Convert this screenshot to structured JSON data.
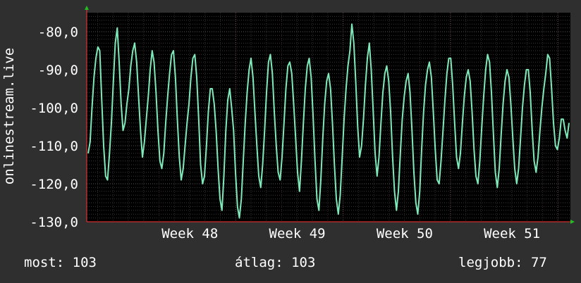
{
  "chart_data": {
    "type": "line",
    "ylabel": "onlinestream.live",
    "ylim": [
      -130,
      -75
    ],
    "yticks": [
      -80,
      -90,
      -100,
      -110,
      -120,
      -130
    ],
    "ytick_labels": [
      "-80,0",
      "-90,0",
      "-100,0",
      "-110,0",
      "-120,0",
      "-130,0"
    ],
    "x_ticks": [
      {
        "label": "Week 48",
        "pos": 0.308
      },
      {
        "label": "Week 49",
        "pos": 0.53
      },
      {
        "label": "Week 50",
        "pos": 0.752
      },
      {
        "label": "Week 51",
        "pos": 0.974
      }
    ],
    "grid": true,
    "series": [
      {
        "values": [
          -112,
          -109,
          -100,
          -92,
          -87,
          -84,
          -85,
          -98,
          -110,
          -118,
          -119,
          -112,
          -104,
          -93,
          -83,
          -79,
          -88,
          -99,
          -106,
          -104,
          -99,
          -95,
          -89,
          -85,
          -83,
          -88,
          -97,
          -106,
          -113,
          -109,
          -103,
          -97,
          -90,
          -85,
          -88,
          -96,
          -106,
          -114,
          -116,
          -112,
          -104,
          -97,
          -91,
          -86,
          -85,
          -92,
          -103,
          -113,
          -119,
          -116,
          -110,
          -104,
          -99,
          -92,
          -87,
          -86,
          -92,
          -103,
          -115,
          -120,
          -118,
          -110,
          -101,
          -95,
          -95,
          -99,
          -106,
          -116,
          -124,
          -127,
          -118,
          -106,
          -98,
          -95,
          -100,
          -106,
          -117,
          -126,
          -129,
          -124,
          -114,
          -104,
          -96,
          -90,
          -87,
          -92,
          -101,
          -110,
          -118,
          -121,
          -115,
          -106,
          -96,
          -88,
          -86,
          -91,
          -101,
          -110,
          -117,
          -119,
          -113,
          -104,
          -95,
          -89,
          -88,
          -91,
          -99,
          -108,
          -117,
          -122,
          -114,
          -104,
          -95,
          -89,
          -87,
          -92,
          -102,
          -114,
          -124,
          -127,
          -119,
          -108,
          -99,
          -93,
          -91,
          -95,
          -104,
          -115,
          -124,
          -128,
          -123,
          -113,
          -103,
          -95,
          -89,
          -85,
          -78,
          -83,
          -93,
          -105,
          -113,
          -110,
          -103,
          -94,
          -87,
          -83,
          -90,
          -101,
          -112,
          -118,
          -113,
          -104,
          -96,
          -91,
          -89,
          -93,
          -101,
          -113,
          -122,
          -127,
          -122,
          -112,
          -103,
          -97,
          -93,
          -91,
          -96,
          -106,
          -117,
          -125,
          -128,
          -122,
          -111,
          -101,
          -94,
          -90,
          -88,
          -92,
          -101,
          -111,
          -119,
          -120,
          -114,
          -106,
          -98,
          -91,
          -87,
          -87,
          -94,
          -104,
          -113,
          -116,
          -112,
          -104,
          -97,
          -92,
          -90,
          -93,
          -101,
          -111,
          -118,
          -120,
          -114,
          -105,
          -97,
          -90,
          -86,
          -88,
          -96,
          -107,
          -117,
          -121,
          -116,
          -107,
          -99,
          -93,
          -90,
          -92,
          -99,
          -108,
          -116,
          -120,
          -116,
          -108,
          -100,
          -94,
          -90,
          -90,
          -96,
          -106,
          -114,
          -117,
          -113,
          -106,
          -100,
          -95,
          -91,
          -86,
          -87,
          -95,
          -104,
          -110,
          -111,
          -108,
          -103,
          -103,
          -106,
          -108,
          -104
        ],
        "color": "#7fe9b9"
      }
    ],
    "summary": [
      {
        "label": "most:",
        "value": "103"
      },
      {
        "label": "átlag:",
        "value": "103"
      },
      {
        "label": "legjobb:",
        "value": "77"
      }
    ]
  }
}
